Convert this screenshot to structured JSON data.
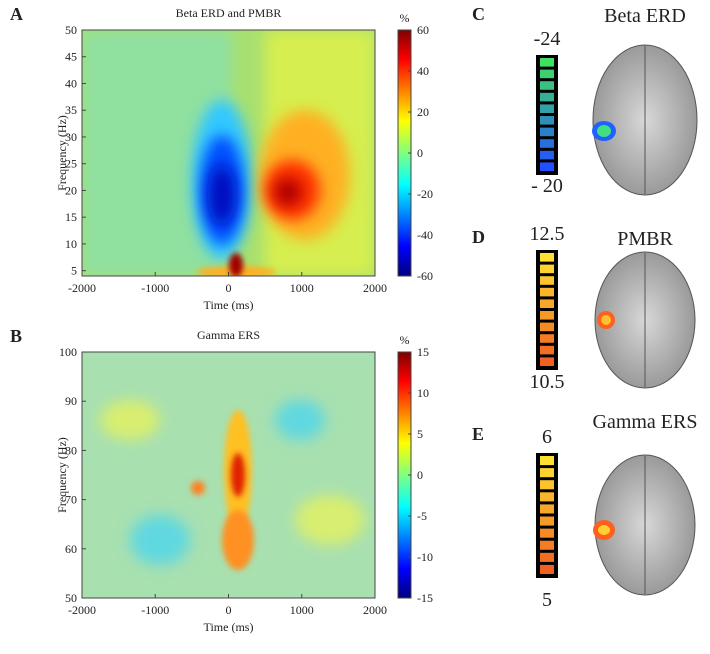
{
  "chart_data": [
    {
      "type": "heatmap",
      "panel_label": "A",
      "title": "Beta ERD and PMBR",
      "xlabel": "Time (ms)",
      "ylabel": "Frequency (Hz)",
      "xlim": [
        -2000,
        2000
      ],
      "xticks": [
        -2000,
        -1000,
        0,
        1000,
        2000
      ],
      "ylim": [
        4,
        50
      ],
      "yticks": [
        5,
        10,
        15,
        20,
        25,
        30,
        35,
        40,
        45,
        50
      ],
      "colorbar_label": "%",
      "clim": [
        -60,
        60
      ],
      "cticks": [
        -60,
        -40,
        -20,
        0,
        20,
        40,
        60
      ]
    },
    {
      "type": "heatmap",
      "panel_label": "B",
      "title": "Gamma ERS",
      "xlabel": "Time (ms)",
      "ylabel": "Frequency (Hz)",
      "xlim": [
        -2000,
        2000
      ],
      "xticks": [
        -2000,
        -1000,
        0,
        1000,
        2000
      ],
      "ylim": [
        50,
        100
      ],
      "yticks": [
        50,
        60,
        70,
        80,
        90,
        100
      ],
      "colorbar_label": "%",
      "clim": [
        -15,
        15
      ],
      "cticks": [
        -15,
        -10,
        -5,
        0,
        5,
        10,
        15
      ]
    }
  ],
  "brain_maps": [
    {
      "panel_label": "C",
      "title": "Beta ERD",
      "scale_top": "-24",
      "scale_bottom": "- 20"
    },
    {
      "panel_label": "D",
      "title": "PMBR",
      "scale_top": "12.5",
      "scale_bottom": "10.5"
    },
    {
      "panel_label": "E",
      "title": "Gamma ERS",
      "scale_top": "6",
      "scale_bottom": "5"
    }
  ]
}
